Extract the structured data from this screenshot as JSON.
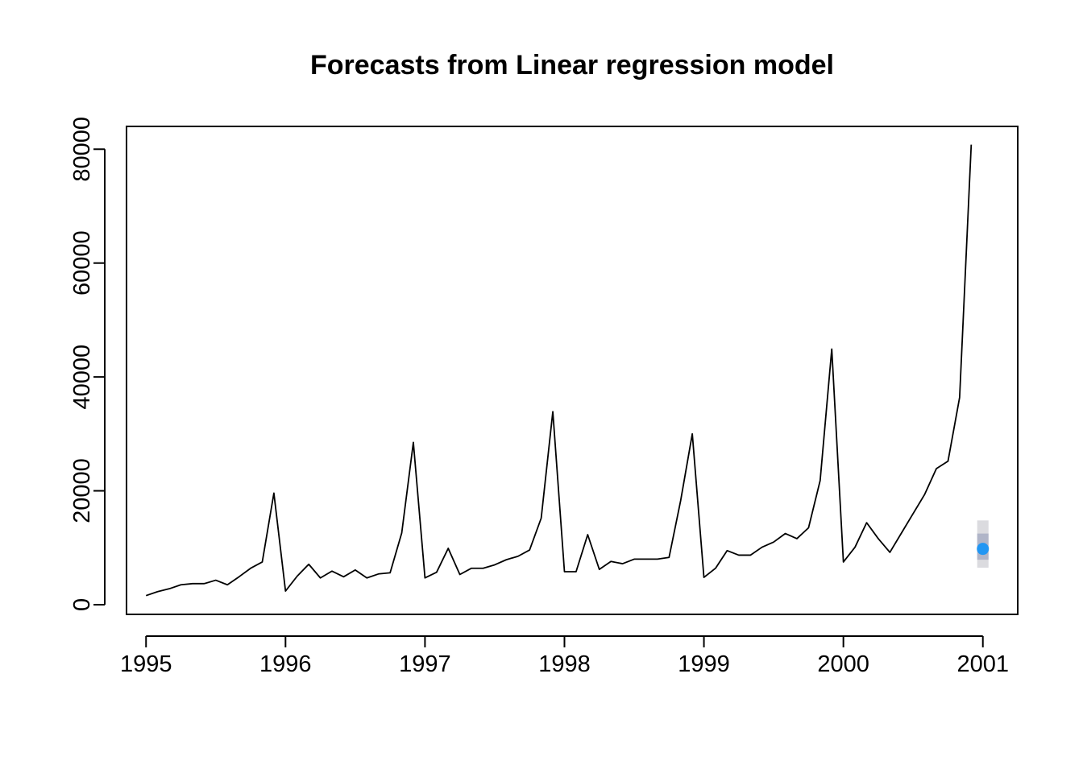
{
  "chart_data": {
    "type": "line",
    "title": "Forecasts from Linear regression model",
    "xlabel": "",
    "ylabel": "",
    "xlim": [
      1994.86,
      2001.25
    ],
    "ylim": [
      -1700,
      84000
    ],
    "x_ticks": [
      1995,
      1996,
      1997,
      1998,
      1999,
      2000,
      2001
    ],
    "x_tick_labels": [
      "1995",
      "1996",
      "1997",
      "1998",
      "1999",
      "2000",
      "2001"
    ],
    "y_ticks": [
      0,
      20000,
      40000,
      60000,
      80000
    ],
    "y_tick_labels": [
      "0",
      "20000",
      "40000",
      "60000",
      "80000"
    ],
    "grid": false,
    "series": [
      {
        "start": 1995,
        "frequency": 12,
        "color": "#000000",
        "values": [
          1600,
          2300,
          2800,
          3500,
          3700,
          3700,
          4300,
          3500,
          4900,
          6400,
          7500,
          19600,
          2400,
          5000,
          7100,
          4700,
          5900,
          4900,
          6100,
          4700,
          5400,
          5600,
          12600,
          28500,
          4700,
          5700,
          9900,
          5300,
          6400,
          6400,
          7000,
          7900,
          8500,
          9600,
          15200,
          33900,
          5800,
          5800,
          12300,
          6200,
          7600,
          7200,
          8000,
          8000,
          8000,
          8300,
          18300,
          30000,
          4800,
          6400,
          9500,
          8700,
          8700,
          10100,
          11000,
          12500,
          11600,
          13500,
          21800,
          44900,
          7500,
          10100,
          14400,
          11600,
          9200,
          12600,
          16000,
          19400,
          23900,
          25200,
          36400,
          80800
        ]
      }
    ],
    "forecast": {
      "x": 2001,
      "point": 9800,
      "lo80": 7900,
      "hi80": 12500,
      "lo95": 6500,
      "hi95": 14800,
      "point_color": "#2196F3",
      "band80_color": "#B0B5C8",
      "band95_color": "#DBDBDF"
    }
  }
}
